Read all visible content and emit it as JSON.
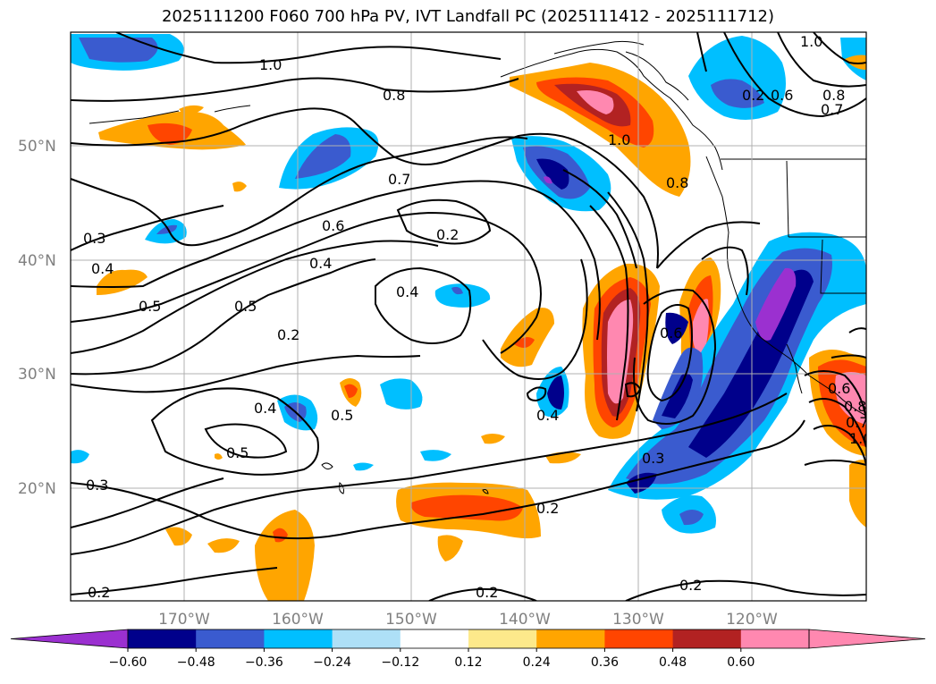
{
  "title": "2025111200 F060 700 hPa PV, IVT Landfall PC (2025111412 - 2025111712)",
  "lat_labels": [
    "50°N",
    "40°N",
    "30°N",
    "20°N"
  ],
  "lon_labels": [
    "170°W",
    "160°W",
    "150°W",
    "140°W",
    "130°W",
    "120°W"
  ],
  "colorbar": {
    "ticks": [
      "−0.60",
      "−0.48",
      "−0.36",
      "−0.24",
      "−0.12",
      "0.12",
      "0.24",
      "0.36",
      "0.48",
      "0.60"
    ],
    "colors": [
      "#9b30d0",
      "#00008b",
      "#3a5bcf",
      "#00bfff",
      "#aee0f7",
      "#ffffff",
      "#fde98b",
      "#ffa500",
      "#ff4500",
      "#b22222",
      "#ff88b0",
      "#ff88b0"
    ]
  },
  "contour_labels": [
    "1.0",
    "0.8",
    "0.7",
    "0.6",
    "0.5",
    "0.4",
    "0.3",
    "0.2",
    "1.0",
    "0.8",
    "0.7",
    "0.6",
    "0.5",
    "0.4",
    "0.3",
    "0.2",
    "0.2",
    "0.4",
    "0.5",
    "0.4",
    "0.3",
    "0.2",
    "0.2",
    "0.2",
    "0.6",
    "0.8",
    "1.0",
    "0.6",
    "0.8",
    "0.7",
    "1.0",
    "0.2",
    "0.5",
    "0.4"
  ]
}
